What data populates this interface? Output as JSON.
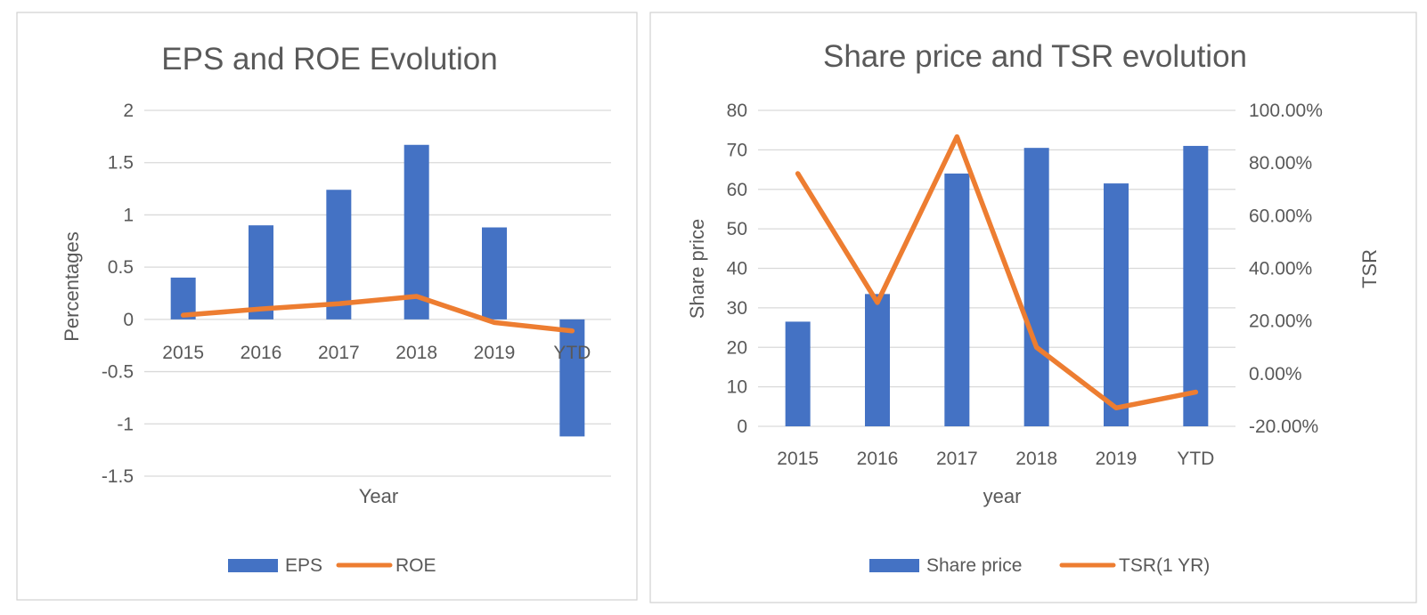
{
  "colors": {
    "bar": "#4472C4",
    "line": "#ED7D31",
    "grid": "#D9D9D9",
    "text": "#595959",
    "border": "#D0D0D0"
  },
  "chart_data": [
    {
      "type": "bar",
      "title": "EPS and ROE Evolution",
      "xlabel": "Year",
      "ylabel": "Percentages",
      "categories": [
        "2015",
        "2016",
        "2017",
        "2018",
        "2019",
        "YTD"
      ],
      "ylim": [
        -1.5,
        2
      ],
      "yticks": [
        2,
        1.5,
        1,
        0.5,
        0,
        -0.5,
        -1,
        -1.5
      ],
      "ytick_labels": [
        "2",
        "1.5",
        "1",
        "0.5",
        "0",
        "-0.5",
        "-1",
        "-1.5"
      ],
      "grid": true,
      "legend_position": "bottom",
      "series": [
        {
          "name": "EPS",
          "type": "bar",
          "values": [
            0.4,
            0.9,
            1.24,
            1.67,
            0.88,
            -1.12
          ]
        },
        {
          "name": "ROE",
          "type": "line",
          "values": [
            0.04,
            0.1,
            0.15,
            0.22,
            -0.03,
            -0.11
          ]
        }
      ]
    },
    {
      "type": "bar",
      "title": "Share price and TSR evolution",
      "xlabel": "year",
      "ylabel": "Share price",
      "y2label": "TSR",
      "categories": [
        "2015",
        "2016",
        "2017",
        "2018",
        "2019",
        "YTD"
      ],
      "ylim": [
        0,
        80
      ],
      "yticks": [
        80,
        70,
        60,
        50,
        40,
        30,
        20,
        10,
        0
      ],
      "ytick_labels": [
        "80",
        "70",
        "60",
        "50",
        "40",
        "30",
        "20",
        "10",
        "0"
      ],
      "y2lim": [
        -0.2,
        1.0
      ],
      "y2ticks": [
        1.0,
        0.8,
        0.6,
        0.4,
        0.2,
        0.0,
        -0.2
      ],
      "y2tick_labels": [
        "100.00%",
        "80.00%",
        "60.00%",
        "40.00%",
        "20.00%",
        "0.00%",
        "-20.00%"
      ],
      "grid": true,
      "legend_position": "bottom",
      "series": [
        {
          "name": "Share price",
          "type": "bar",
          "axis": "left",
          "values": [
            26.5,
            33.5,
            64,
            70.5,
            61.5,
            71
          ]
        },
        {
          "name": "TSR(1 YR)",
          "type": "line",
          "axis": "right",
          "values": [
            0.76,
            0.27,
            0.9,
            0.1,
            -0.13,
            -0.07
          ]
        }
      ]
    }
  ]
}
